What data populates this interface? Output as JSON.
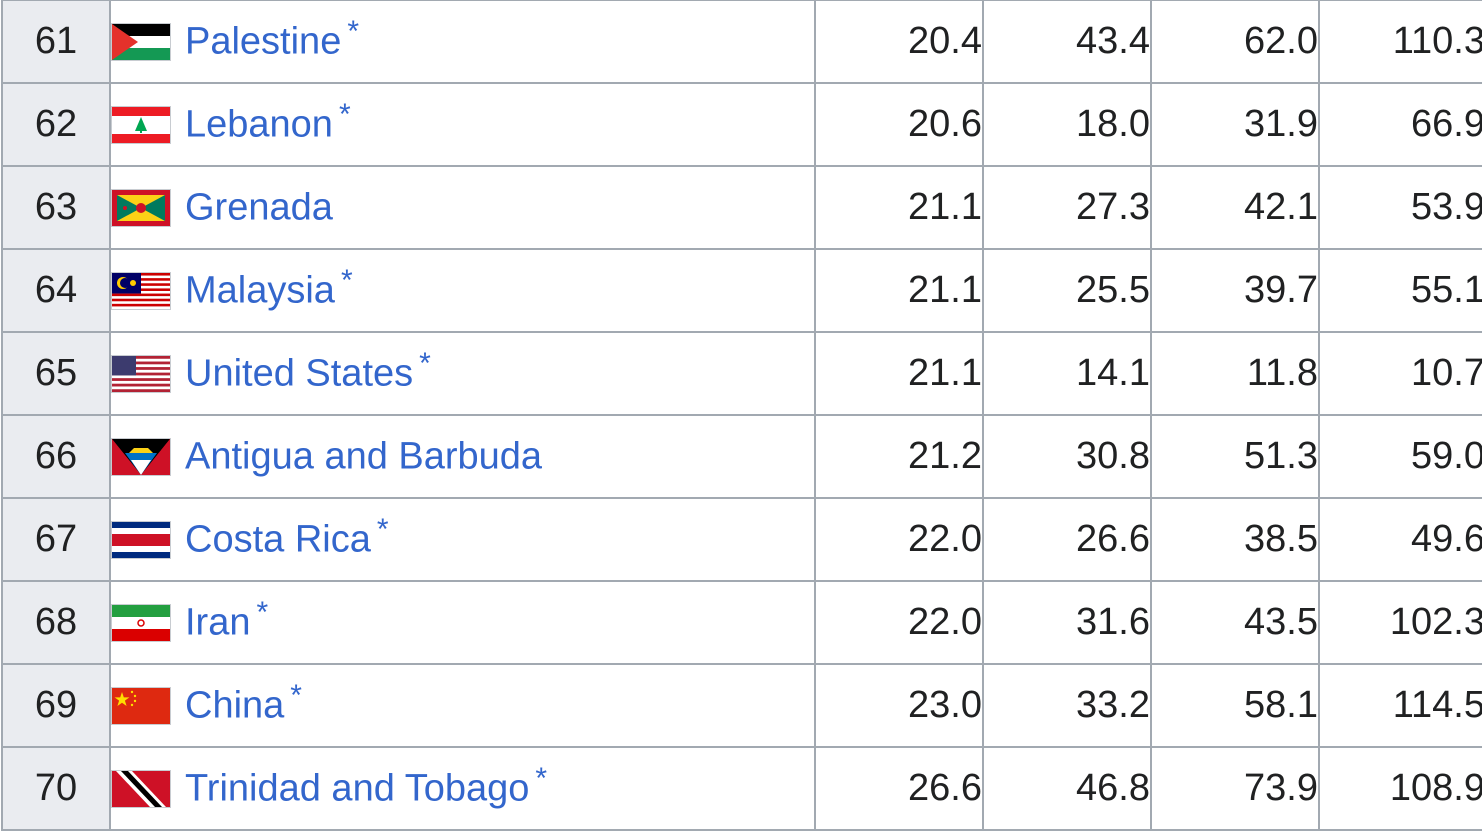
{
  "table": {
    "rows": [
      {
        "rank": "61",
        "country": "Palestine",
        "flag": "palestine-flag-icon",
        "star": "*",
        "v1": "20.4",
        "v2": "43.4",
        "v3": "62.0",
        "v4": "110.3"
      },
      {
        "rank": "62",
        "country": "Lebanon",
        "flag": "lebanon-flag-icon",
        "star": "*",
        "v1": "20.6",
        "v2": "18.0",
        "v3": "31.9",
        "v4": "66.9"
      },
      {
        "rank": "63",
        "country": "Grenada",
        "flag": "grenada-flag-icon",
        "star": "",
        "v1": "21.1",
        "v2": "27.3",
        "v3": "42.1",
        "v4": "53.9"
      },
      {
        "rank": "64",
        "country": "Malaysia",
        "flag": "malaysia-flag-icon",
        "star": "*",
        "v1": "21.1",
        "v2": "25.5",
        "v3": "39.7",
        "v4": "55.1"
      },
      {
        "rank": "65",
        "country": "United States",
        "flag": "united-states-flag-icon",
        "star": "*",
        "v1": "21.1",
        "v2": "14.1",
        "v3": "11.8",
        "v4": "10.7"
      },
      {
        "rank": "66",
        "country": "Antigua and Barbuda",
        "flag": "antigua-and-barbuda-flag-icon",
        "star": "",
        "v1": "21.2",
        "v2": "30.8",
        "v3": "51.3",
        "v4": "59.0"
      },
      {
        "rank": "67",
        "country": "Costa Rica",
        "flag": "costa-rica-flag-icon",
        "star": "*",
        "v1": "22.0",
        "v2": "26.6",
        "v3": "38.5",
        "v4": "49.6"
      },
      {
        "rank": "68",
        "country": "Iran",
        "flag": "iran-flag-icon",
        "star": "*",
        "v1": "22.0",
        "v2": "31.6",
        "v3": "43.5",
        "v4": "102.3"
      },
      {
        "rank": "69",
        "country": "China",
        "flag": "china-flag-icon",
        "star": "*",
        "v1": "23.0",
        "v2": "33.2",
        "v3": "58.1",
        "v4": "114.5"
      },
      {
        "rank": "70",
        "country": "Trinidad and Tobago",
        "flag": "trinidad-and-tobago-flag-icon",
        "star": "*",
        "v1": "26.6",
        "v2": "46.8",
        "v3": "73.9",
        "v4": "108.9"
      }
    ]
  },
  "colors": {
    "link": "#3366cc",
    "rank_bg": "#eaecf0",
    "border": "#a2a9b1",
    "text": "#202122"
  }
}
